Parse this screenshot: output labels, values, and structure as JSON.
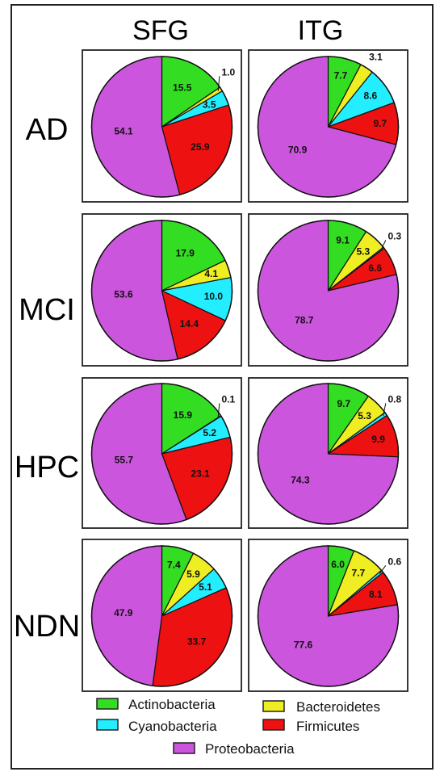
{
  "colors": {
    "Actinobacteria": "#33dd22",
    "Cyanobacteria": "#22eeff",
    "Bacteroidetes": "#eeee22",
    "Firmicutes": "#ee1111",
    "Proteobacteria": "#cc55dd",
    "Other": "#999999"
  },
  "chart_data": {
    "type": "pie",
    "columns": [
      "SFG",
      "ITG"
    ],
    "rows": [
      "AD",
      "MCI",
      "HPC",
      "NDN"
    ],
    "categories": [
      "Actinobacteria",
      "Bacteroidetes",
      "Cyanobacteria",
      "Firmicutes",
      "Proteobacteria"
    ],
    "pies": [
      {
        "row": "AD",
        "col": "SFG",
        "values": [
          15.5,
          1.0,
          3.5,
          25.9,
          54.1
        ],
        "labels": [
          "15.5",
          "1.0",
          "3.5",
          "25.9",
          "54.1"
        ]
      },
      {
        "row": "AD",
        "col": "ITG",
        "values": [
          7.7,
          3.1,
          8.6,
          9.7,
          70.9
        ],
        "labels": [
          "7.7",
          "3.1",
          "8.6",
          "9.7",
          "70.9"
        ]
      },
      {
        "row": "MCI",
        "col": "SFG",
        "values": [
          17.9,
          4.1,
          10.0,
          14.4,
          53.6
        ],
        "labels": [
          "17.9",
          "4.1",
          "10.0",
          "14.4",
          "53.6"
        ]
      },
      {
        "row": "MCI",
        "col": "ITG",
        "values": [
          9.1,
          5.3,
          0.3,
          6.6,
          78.7
        ],
        "labels": [
          "9.1",
          "5.3",
          "0.3",
          "6.6",
          "78.7"
        ]
      },
      {
        "row": "HPC",
        "col": "SFG",
        "values": [
          15.9,
          0.1,
          5.2,
          23.1,
          55.7
        ],
        "labels": [
          "15.9",
          "0.1",
          "5.2",
          "23.1",
          "55.7"
        ]
      },
      {
        "row": "HPC",
        "col": "ITG",
        "values": [
          9.7,
          5.3,
          0.8,
          9.9,
          74.3
        ],
        "labels": [
          "9.7",
          "5.3",
          "0.8",
          "9.9",
          "74.3"
        ]
      },
      {
        "row": "NDN",
        "col": "SFG",
        "values": [
          7.4,
          5.9,
          5.1,
          33.7,
          47.9
        ],
        "labels": [
          "7.4",
          "5.9",
          "5.1",
          "33.7",
          "47.9"
        ]
      },
      {
        "row": "NDN",
        "col": "ITG",
        "values": [
          6.0,
          7.7,
          0.6,
          8.1,
          77.6
        ],
        "labels": [
          "6.0",
          "7.7",
          "0.6",
          "8.1",
          "77.6"
        ]
      }
    ],
    "legend": [
      "Actinobacteria",
      "Bacteroidetes",
      "Cyanobacteria",
      "Firmicutes",
      "Proteobacteria"
    ],
    "legend_position": "bottom"
  }
}
